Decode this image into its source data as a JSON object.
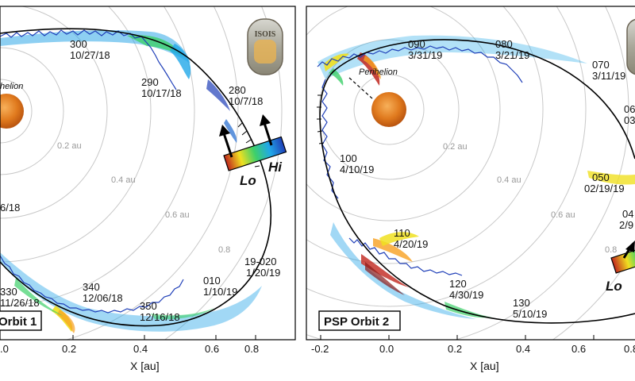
{
  "colors": {
    "sun": "#e07a1e",
    "orbit_line": "#000000",
    "rings": "#c8c8c8",
    "flux_low": "#1f3fb8",
    "flux_high": "#c0261d"
  },
  "panels": [
    {
      "orbit_label": "Orbit 1",
      "xlabel": "X [au]",
      "perihelion_label": "helion",
      "x_ticks": [
        ".0",
        "0.2",
        "0.4",
        "0.6",
        "0.8"
      ],
      "ring_labels": [
        "0.2 au",
        "0.4 au",
        "0.6 au",
        "0.8"
      ],
      "date_labels": [
        {
          "doy": "300",
          "date": "10/27/18"
        },
        {
          "doy": "290",
          "date": "10/17/18"
        },
        {
          "doy": "280",
          "date": "10/7/18"
        },
        {
          "doy": "",
          "date": "6/18"
        },
        {
          "doy": "330",
          "date": "11/26/18"
        },
        {
          "doy": "340",
          "date": "12/06/18"
        },
        {
          "doy": "350",
          "date": "12/16/18"
        },
        {
          "doy": "010",
          "date": "1/10/19"
        },
        {
          "doy": "19-020",
          "date": "1/20/19"
        }
      ],
      "legend": {
        "hi": "Hi",
        "lo": "Lo"
      },
      "logo_text": "ISOIS"
    },
    {
      "orbit_label": "PSP Orbit 2",
      "xlabel": "X [au]",
      "perihelion_label": "Perihelion",
      "x_ticks": [
        "-0.2",
        "0.0",
        "0.2",
        "0.4",
        "0.6",
        "0.8"
      ],
      "ring_labels": [
        "0.2 au",
        "0.4 au",
        "0.6 au",
        "0.8"
      ],
      "date_labels": [
        {
          "doy": "090",
          "date": "3/31/19"
        },
        {
          "doy": "080",
          "date": "3/21/19"
        },
        {
          "doy": "070",
          "date": "3/11/19"
        },
        {
          "doy": "06",
          "date": "03"
        },
        {
          "doy": "100",
          "date": "4/10/19"
        },
        {
          "doy": "050",
          "date": "02/19/19"
        },
        {
          "doy": "04",
          "date": "2/9"
        },
        {
          "doy": "110",
          "date": "4/20/19"
        },
        {
          "doy": "120",
          "date": "4/30/19"
        },
        {
          "doy": "130",
          "date": "5/10/19"
        }
      ],
      "legend": {
        "hi": "",
        "lo": "Lo"
      }
    }
  ]
}
